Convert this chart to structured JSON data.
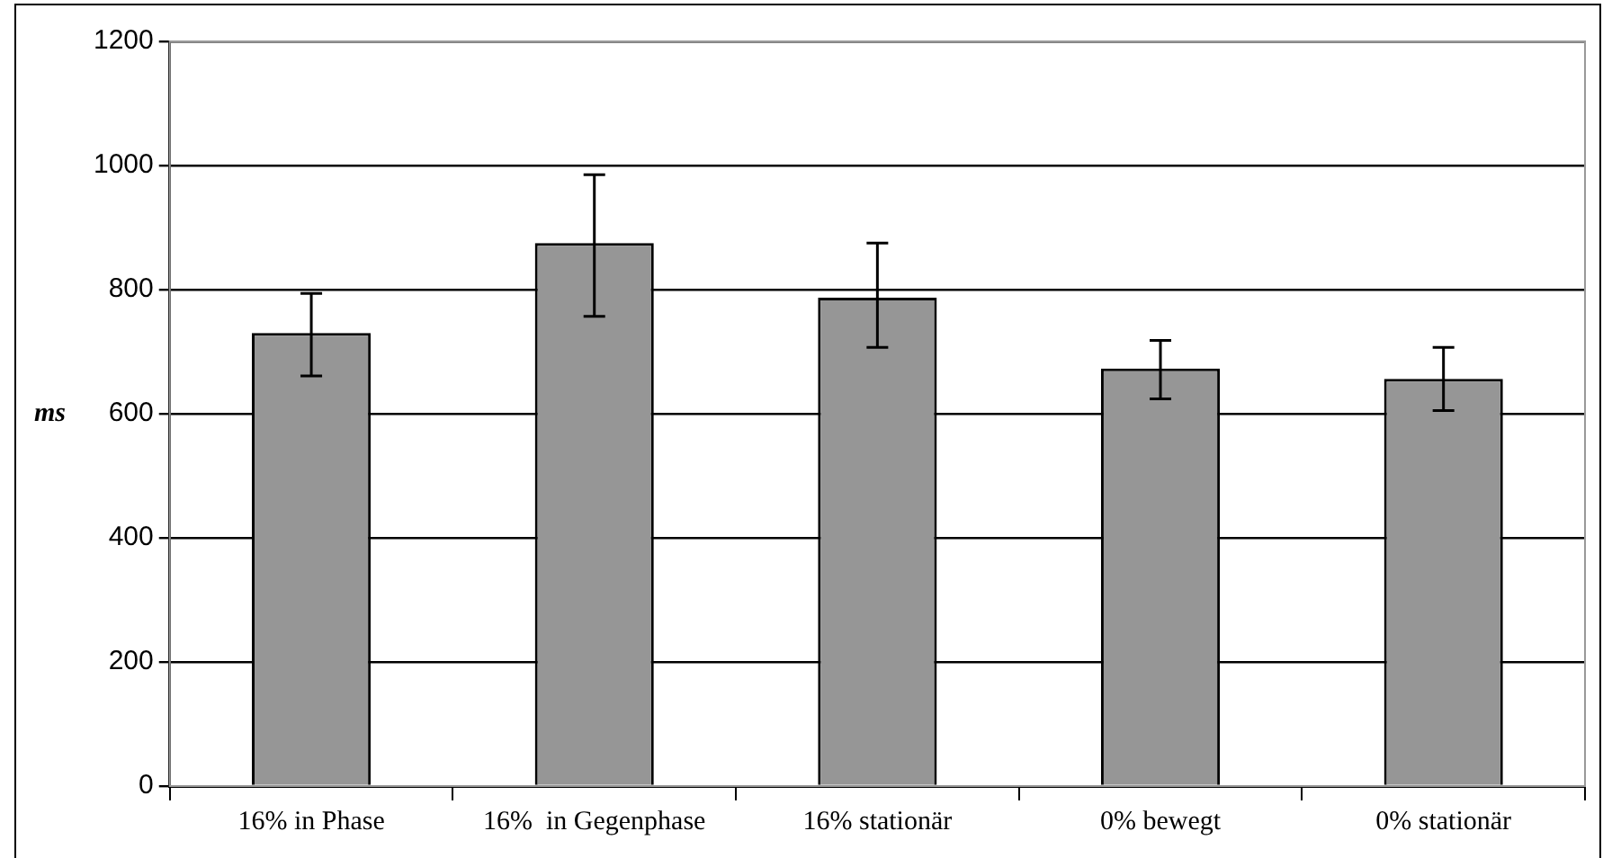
{
  "chart_data": {
    "type": "bar",
    "ylabel": "ms",
    "categories": [
      "16% in Phase",
      "16%  in Gegenphase",
      "16% stationär",
      "0% bewegt",
      "0% stationär"
    ],
    "values": [
      730,
      875,
      787,
      673,
      656
    ],
    "errors": [
      [
        661,
        794
      ],
      [
        757,
        985
      ],
      [
        707,
        875
      ],
      [
        624,
        718
      ],
      [
        605,
        707
      ]
    ],
    "color": "#969696",
    "ylim": [
      0,
      1200
    ],
    "yticks": [
      0,
      200,
      400,
      600,
      800,
      1000,
      1200
    ],
    "grid": "y"
  }
}
